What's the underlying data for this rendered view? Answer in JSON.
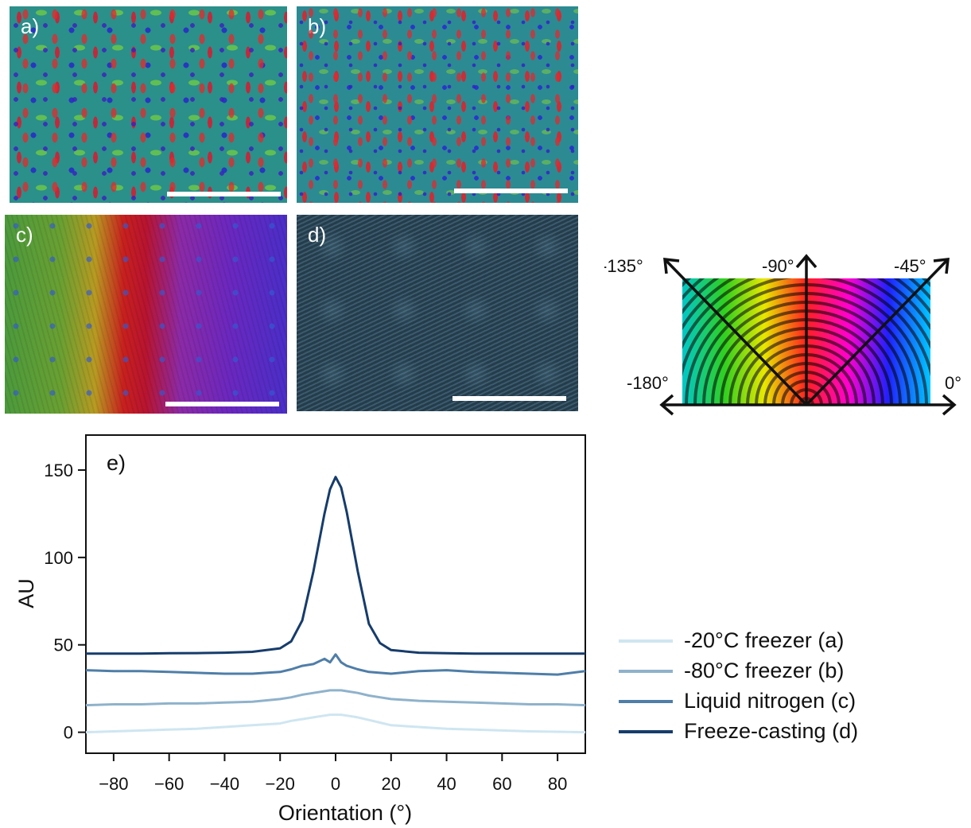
{
  "panels": {
    "a": {
      "label": "a)"
    },
    "b": {
      "label": "b)"
    },
    "c": {
      "label": "c)"
    },
    "d": {
      "label": "d)"
    }
  },
  "color_wheel": {
    "labels": [
      "-135°",
      "-90°",
      "-45°",
      "-180°",
      "0°"
    ],
    "colors": [
      "#00c8c8",
      "#30d020",
      "#e8e800",
      "#ff2020",
      "#ff00d0",
      "#2020ff",
      "#00c8ff"
    ]
  },
  "chart_data": {
    "type": "line",
    "panel_label": "e)",
    "xlabel": "Orientation (°)",
    "ylabel": "AU",
    "xlim": [
      -90,
      90
    ],
    "ylim": [
      -12,
      170
    ],
    "xticks": [
      -80,
      -60,
      -40,
      -20,
      0,
      20,
      40,
      60,
      80
    ],
    "yticks": [
      0,
      50,
      100,
      150
    ],
    "x": [
      -90,
      -80,
      -70,
      -60,
      -50,
      -40,
      -30,
      -20,
      -16,
      -12,
      -8,
      -4,
      -2,
      0,
      2,
      4,
      8,
      12,
      16,
      20,
      30,
      40,
      50,
      60,
      70,
      80,
      90
    ],
    "series": [
      {
        "name": "-20°C freezer (a)",
        "color": "#cfe6f1",
        "values": [
          0,
          0.5,
          1,
          1.5,
          2,
          3,
          4,
          5,
          6.5,
          7.5,
          8.5,
          9.5,
          10,
          10,
          10,
          9.5,
          8.5,
          7,
          5.5,
          4,
          3,
          2,
          1.5,
          1,
          0.5,
          0.3,
          0
        ]
      },
      {
        "name": "-80°C freezer (b)",
        "color": "#8fb2cb",
        "values": [
          15.5,
          16,
          16,
          16.5,
          16.5,
          17,
          17.5,
          19,
          20,
          21.5,
          22.5,
          23.5,
          24,
          24,
          24,
          23.5,
          22.5,
          21,
          20,
          19,
          18,
          17.5,
          17,
          16.5,
          16,
          16,
          15.5
        ]
      },
      {
        "name": "Liquid nitrogen (c)",
        "color": "#4f7ea8",
        "values": [
          35.5,
          35,
          35,
          34.5,
          34,
          33.5,
          33.5,
          34.5,
          36,
          38,
          39,
          42,
          40,
          44.5,
          40,
          38,
          36,
          34.5,
          34,
          33.5,
          35,
          35.5,
          34.5,
          34,
          33.5,
          33,
          35
        ]
      },
      {
        "name": "Freeze-casting (d)",
        "color": "#163c6b",
        "values": [
          45,
          45,
          45,
          45.2,
          45.3,
          45.5,
          46,
          48,
          52,
          64,
          92,
          125,
          139,
          146,
          140,
          126,
          92,
          62,
          51,
          47,
          45.5,
          45.2,
          45,
          45,
          45,
          45,
          45
        ]
      }
    ]
  }
}
